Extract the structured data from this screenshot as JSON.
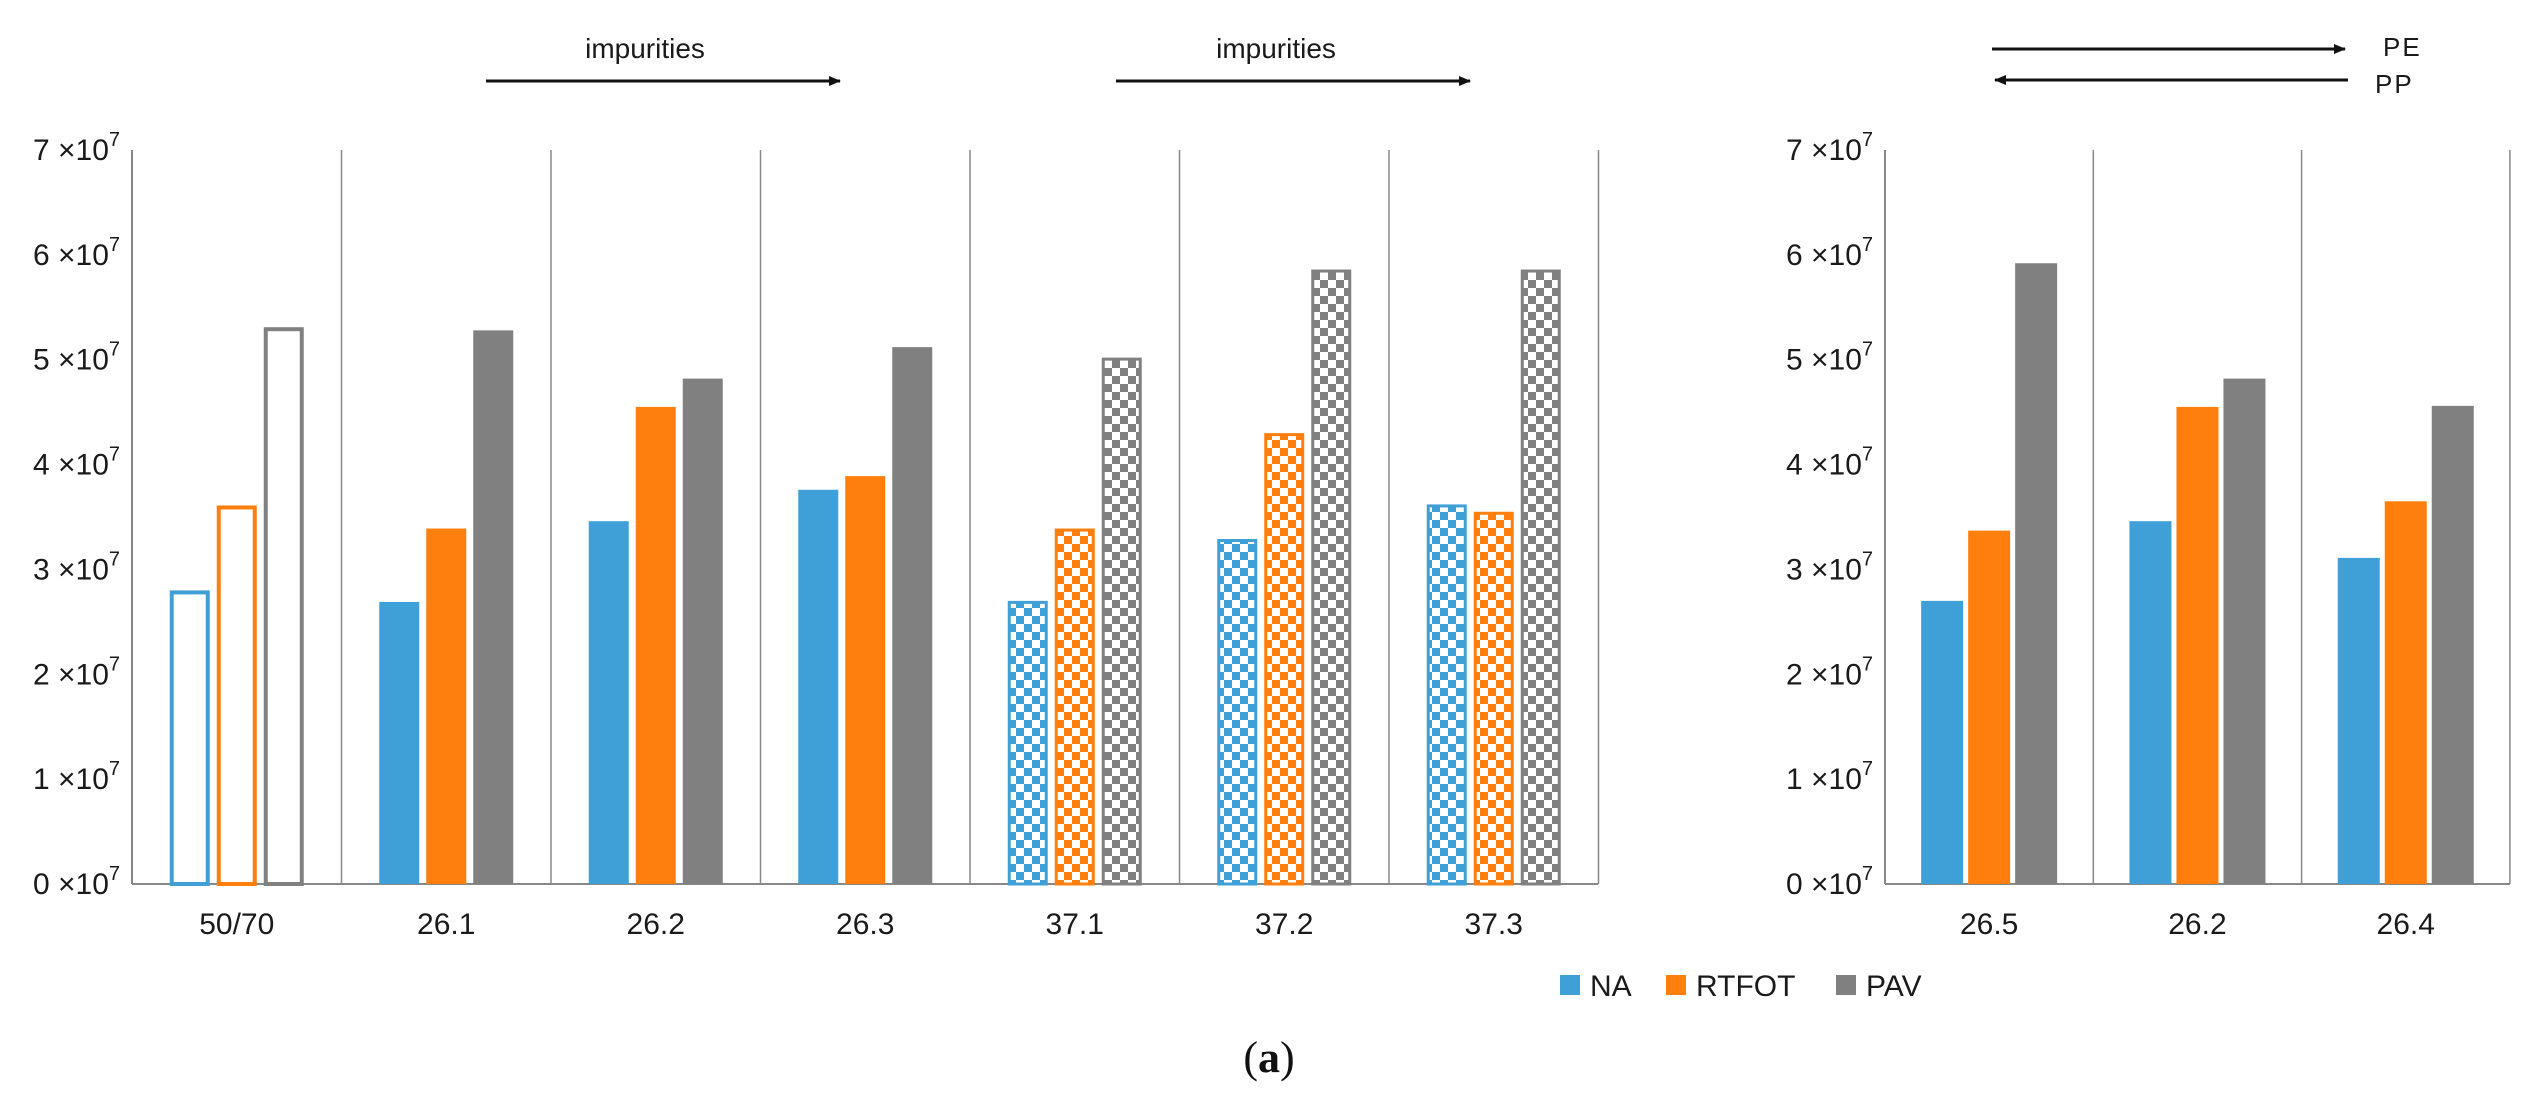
{
  "colors": {
    "NA": "#3fa0d8",
    "RTFOT": "#ff7f0e",
    "PAV": "#808080"
  },
  "legend": [
    {
      "key": "NA",
      "label": "NA"
    },
    {
      "key": "RTFOT",
      "label": "RTFOT"
    },
    {
      "key": "PAV",
      "label": "PAV"
    }
  ],
  "subfigure_label": {
    "open": "(",
    "letter": "a",
    "close": ")"
  },
  "annotations": {
    "impurities_1": "impurities",
    "impurities_2": "impurities",
    "pe": "PE",
    "pp": "PP"
  },
  "chart_data": [
    {
      "type": "bar",
      "title": "",
      "xlabel": "",
      "ylabel": "",
      "ylim": [
        0,
        70000000
      ],
      "y_ticks": [
        0,
        10000000,
        20000000,
        30000000,
        40000000,
        50000000,
        60000000,
        70000000
      ],
      "y_tick_mantissas": [
        "0",
        "1",
        "2",
        "3",
        "4",
        "5",
        "6",
        "7"
      ],
      "y_tick_exponent_base": "×10",
      "y_tick_exponent": "7",
      "categories": [
        "50/70",
        "26.1",
        "26.2",
        "26.3",
        "37.1",
        "37.2",
        "37.3"
      ],
      "category_styles": [
        "outline",
        "solid",
        "solid",
        "solid",
        "checkered",
        "checkered",
        "checkered"
      ],
      "series": [
        {
          "name": "NA",
          "values": [
            28000000,
            26900000,
            34600000,
            37600000,
            27000000,
            32900000,
            36200000
          ]
        },
        {
          "name": "RTFOT",
          "values": [
            36100000,
            33900000,
            45500000,
            38900000,
            33900000,
            43000000,
            35500000
          ]
        },
        {
          "name": "PAV",
          "values": [
            53100000,
            52800000,
            48200000,
            51200000,
            50200000,
            58600000,
            58600000
          ]
        }
      ]
    },
    {
      "type": "bar",
      "title": "",
      "xlabel": "",
      "ylabel": "",
      "ylim": [
        0,
        70000000
      ],
      "y_ticks": [
        0,
        10000000,
        20000000,
        30000000,
        40000000,
        50000000,
        60000000,
        70000000
      ],
      "y_tick_mantissas": [
        "0",
        "1",
        "2",
        "3",
        "4",
        "5",
        "6",
        "7"
      ],
      "y_tick_exponent_base": "×10",
      "y_tick_exponent": "7",
      "categories": [
        "26.5",
        "26.2",
        "26.4"
      ],
      "category_styles": [
        "solid",
        "solid",
        "solid"
      ],
      "series": [
        {
          "name": "NA",
          "values": [
            27000000,
            34600000,
            31100000
          ]
        },
        {
          "name": "RTFOT",
          "values": [
            33700000,
            45500000,
            36500000
          ]
        },
        {
          "name": "PAV",
          "values": [
            59200000,
            48200000,
            45600000
          ]
        }
      ]
    }
  ]
}
